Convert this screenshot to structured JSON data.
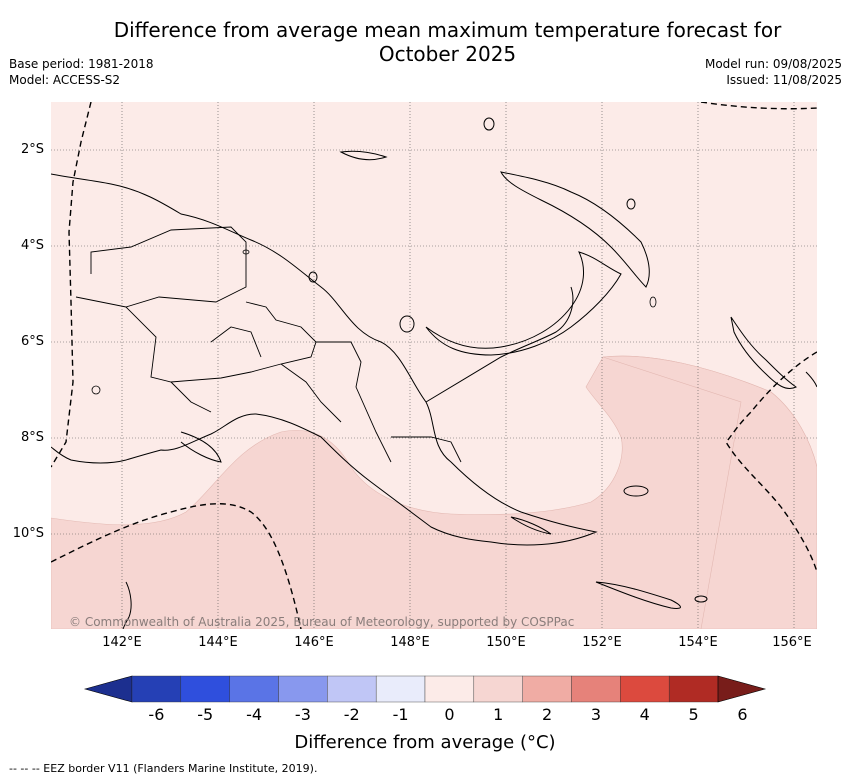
{
  "title_line1": "Difference from average mean maximum temperature forecast for",
  "title_line2": "October 2025",
  "meta_left": [
    "Base period: 1981-2018",
    "Model: ACCESS-S2"
  ],
  "meta_right": [
    "Model run: 09/08/2025",
    "Issued: 11/08/2025"
  ],
  "map": {
    "lat_labels": [
      "2°S",
      "4°S",
      "6°S",
      "8°S",
      "10°S"
    ],
    "lon_labels": [
      "142°E",
      "144°E",
      "146°E",
      "148°E",
      "150°E",
      "152°E",
      "154°E",
      "156°E"
    ],
    "copyright": "© Commonwealth of Australia 2025, Bureau of Meteorology, supported by COSPPac",
    "fill_colors": {
      "0_to_1": "#fcebe8",
      "1_to_2": "#f6d6d2"
    }
  },
  "colorbar": {
    "ticks": [
      "-6",
      "-5",
      "-4",
      "-3",
      "-2",
      "-1",
      "0",
      "1",
      "2",
      "3",
      "4",
      "5",
      "6"
    ],
    "colors": [
      "#1c2f8f",
      "#2540b5",
      "#2f4fdd",
      "#5a74e6",
      "#8898ee",
      "#c0c6f6",
      "#e9ecfb",
      "#fcebe8",
      "#f6d6d2",
      "#f0aca4",
      "#e6827a",
      "#dc4a3e",
      "#b02b24",
      "#781d1a"
    ],
    "label": "Difference from average (°C)"
  },
  "footnote": "-- -- -- EEZ border V11 (Flanders Marine Institute, 2019)."
}
